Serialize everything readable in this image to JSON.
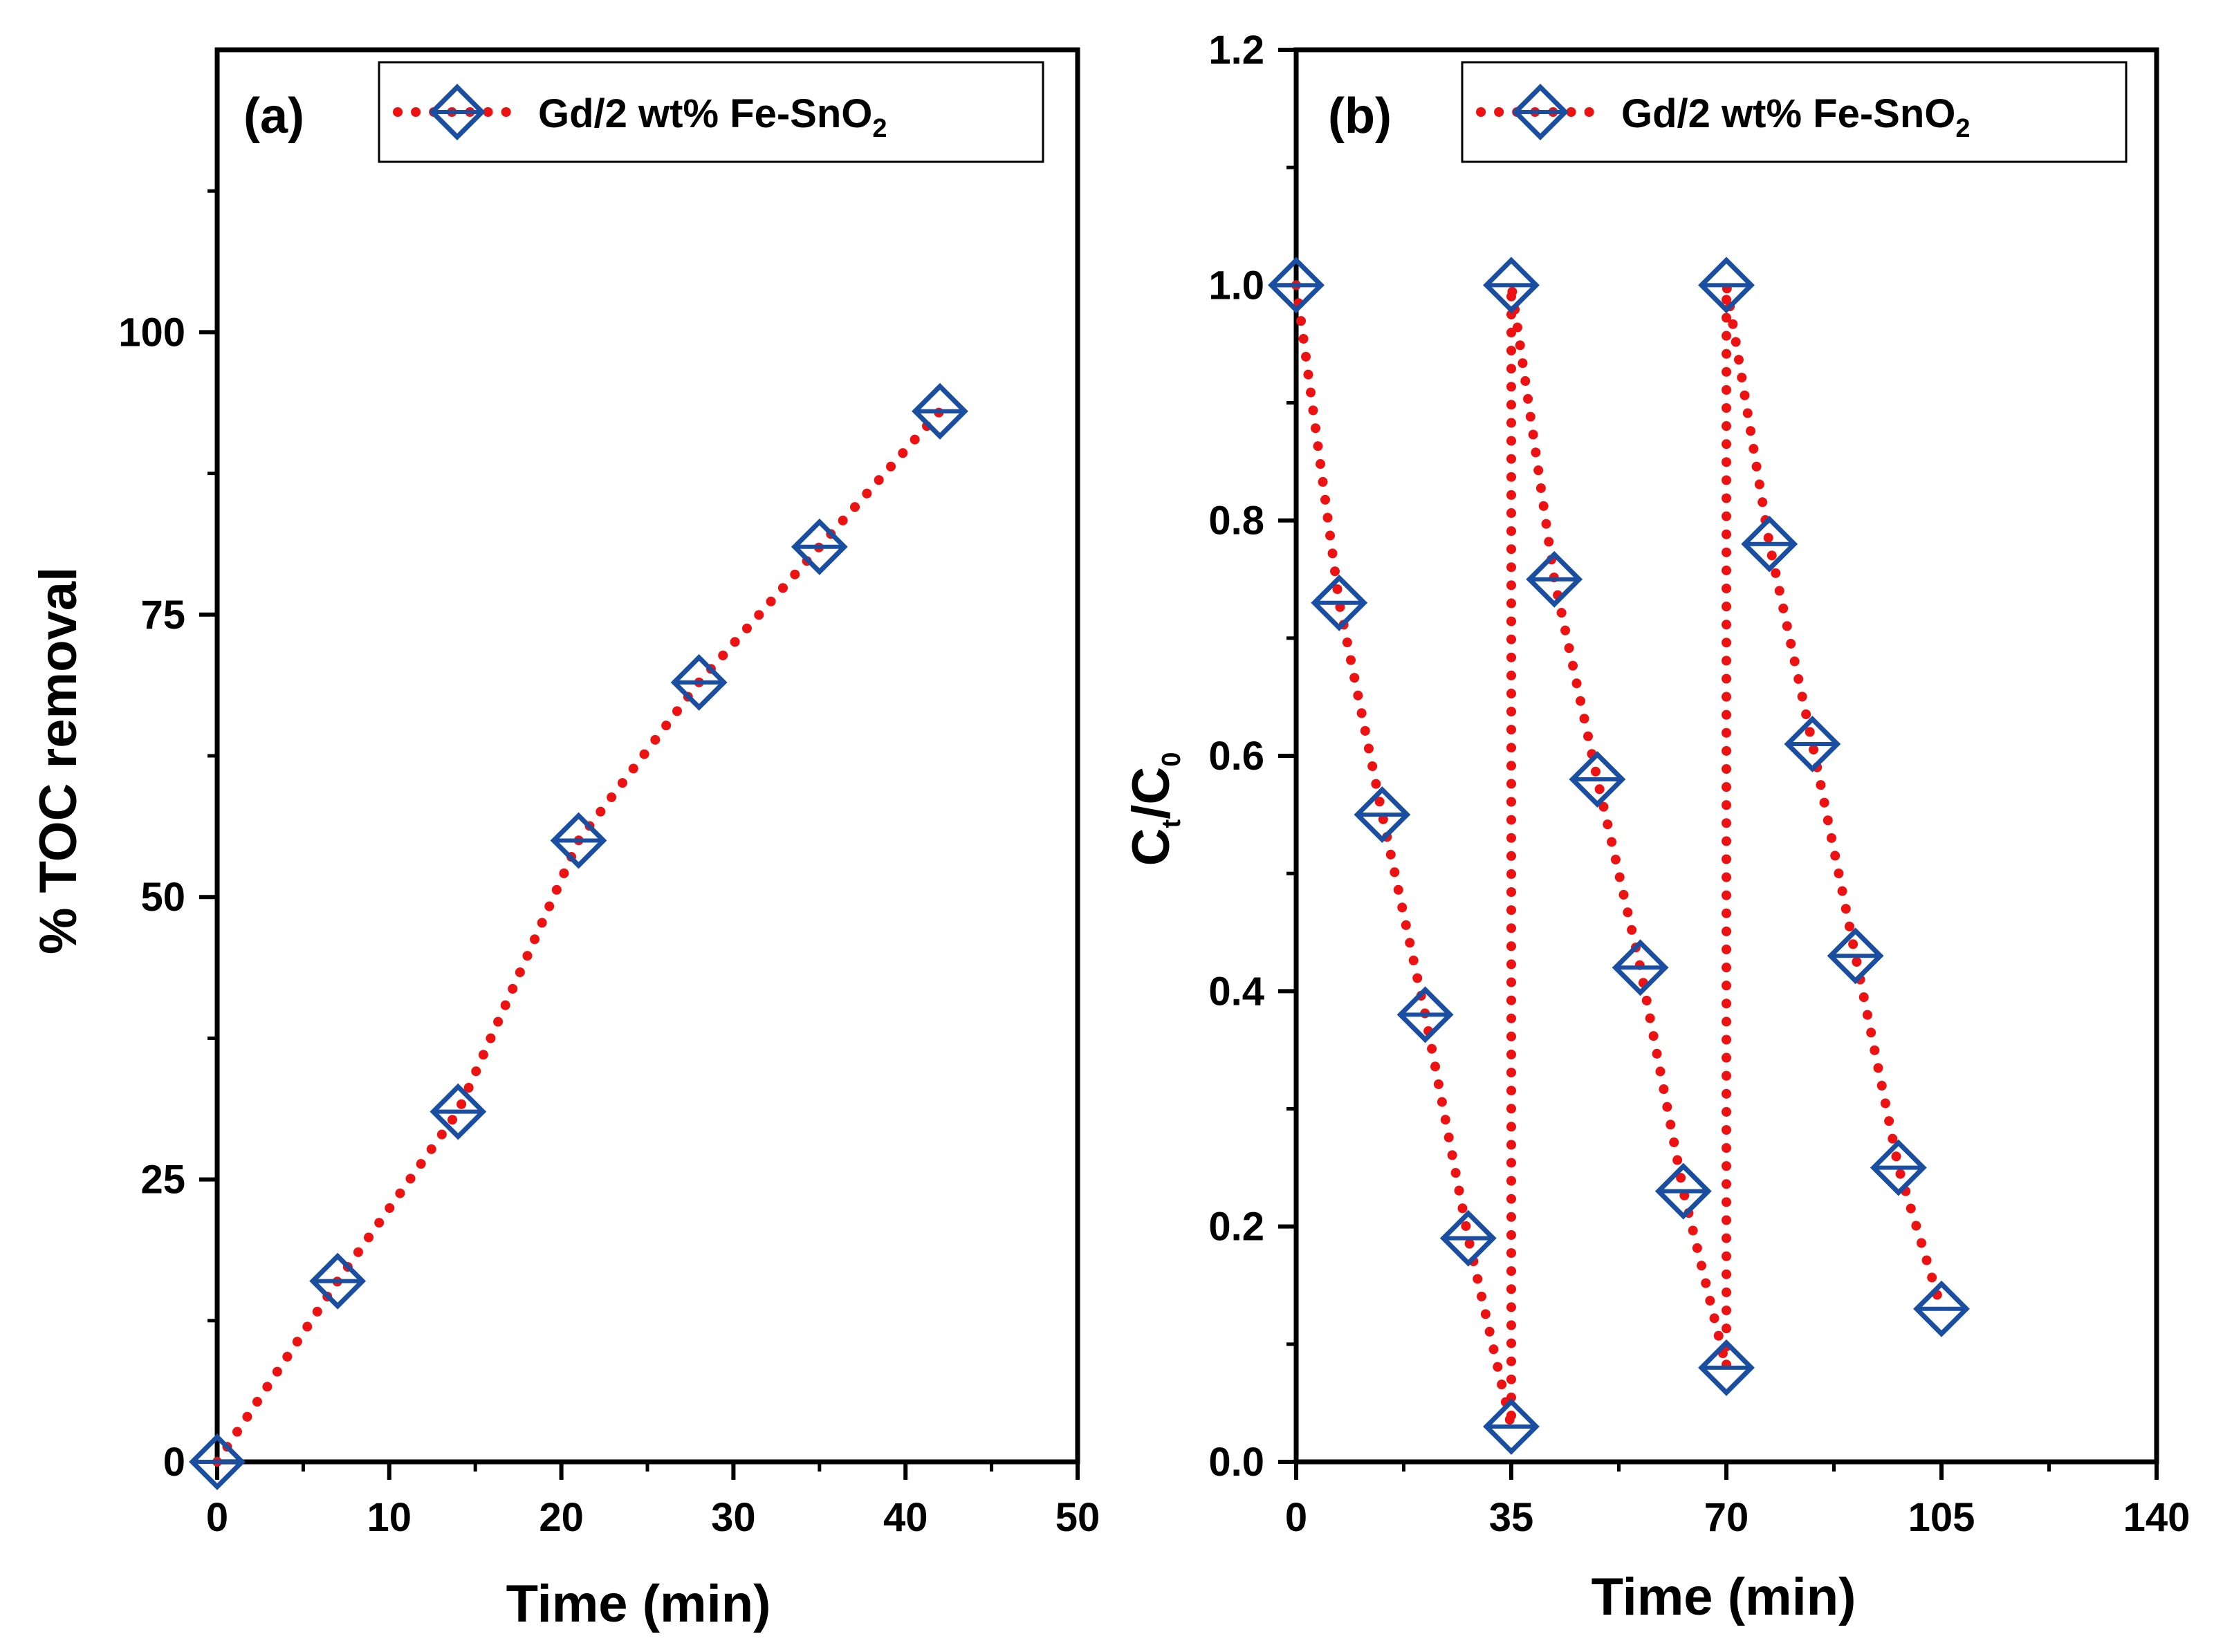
{
  "colors": {
    "line": "#ee1111",
    "marker": "#1a4ea0",
    "axis": "#000000",
    "legend_border": "#000000"
  },
  "marker_shape": "diamond-with-horizontal-bar",
  "chart_data": [
    {
      "panel": "(a)",
      "type": "line",
      "xlabel": "Time (min)",
      "ylabel": "% TOC removal",
      "xlim": [
        0,
        50
      ],
      "ylim": [
        0,
        125
      ],
      "x_ticks": [
        "0",
        "10",
        "20",
        "30",
        "40",
        "50"
      ],
      "y_ticks": [
        "0",
        "25",
        "50",
        "75",
        "100"
      ],
      "legend": {
        "text": "Gd/2 wt% Fe-SnO",
        "subscript": "2",
        "position": "top-right"
      },
      "series": [
        {
          "name": "Gd/2 wt% Fe-SnO2",
          "x": [
            0,
            7,
            14,
            21,
            28,
            35,
            42
          ],
          "y": [
            0,
            16,
            31,
            55,
            69,
            81,
            93
          ]
        }
      ]
    },
    {
      "panel": "(b)",
      "type": "line",
      "xlabel": "Time (min)",
      "ylabel": "C",
      "ylabel_sub1": "t",
      "ylabel_mid": "/C",
      "ylabel_sub2": "0",
      "xlim": [
        0,
        140
      ],
      "ylim": [
        0,
        1.2
      ],
      "x_ticks": [
        "0",
        "35",
        "70",
        "105",
        "140"
      ],
      "y_ticks": [
        "0.0",
        "0.2",
        "0.4",
        "0.6",
        "0.8",
        "1.0",
        "1.2"
      ],
      "legend": {
        "text": "Gd/2 wt% Fe-SnO",
        "subscript": "2",
        "position": "top-right"
      },
      "series": [
        {
          "name": "Gd/2 wt% Fe-SnO2",
          "x": [
            0,
            7,
            14,
            21,
            28,
            35,
            35,
            42,
            49,
            56,
            63,
            70,
            70,
            77,
            84,
            91,
            98,
            105
          ],
          "y": [
            1.0,
            0.73,
            0.55,
            0.38,
            0.19,
            0.03,
            1.0,
            0.75,
            0.58,
            0.42,
            0.23,
            0.08,
            1.0,
            0.78,
            0.61,
            0.43,
            0.25,
            0.13
          ]
        }
      ]
    }
  ]
}
